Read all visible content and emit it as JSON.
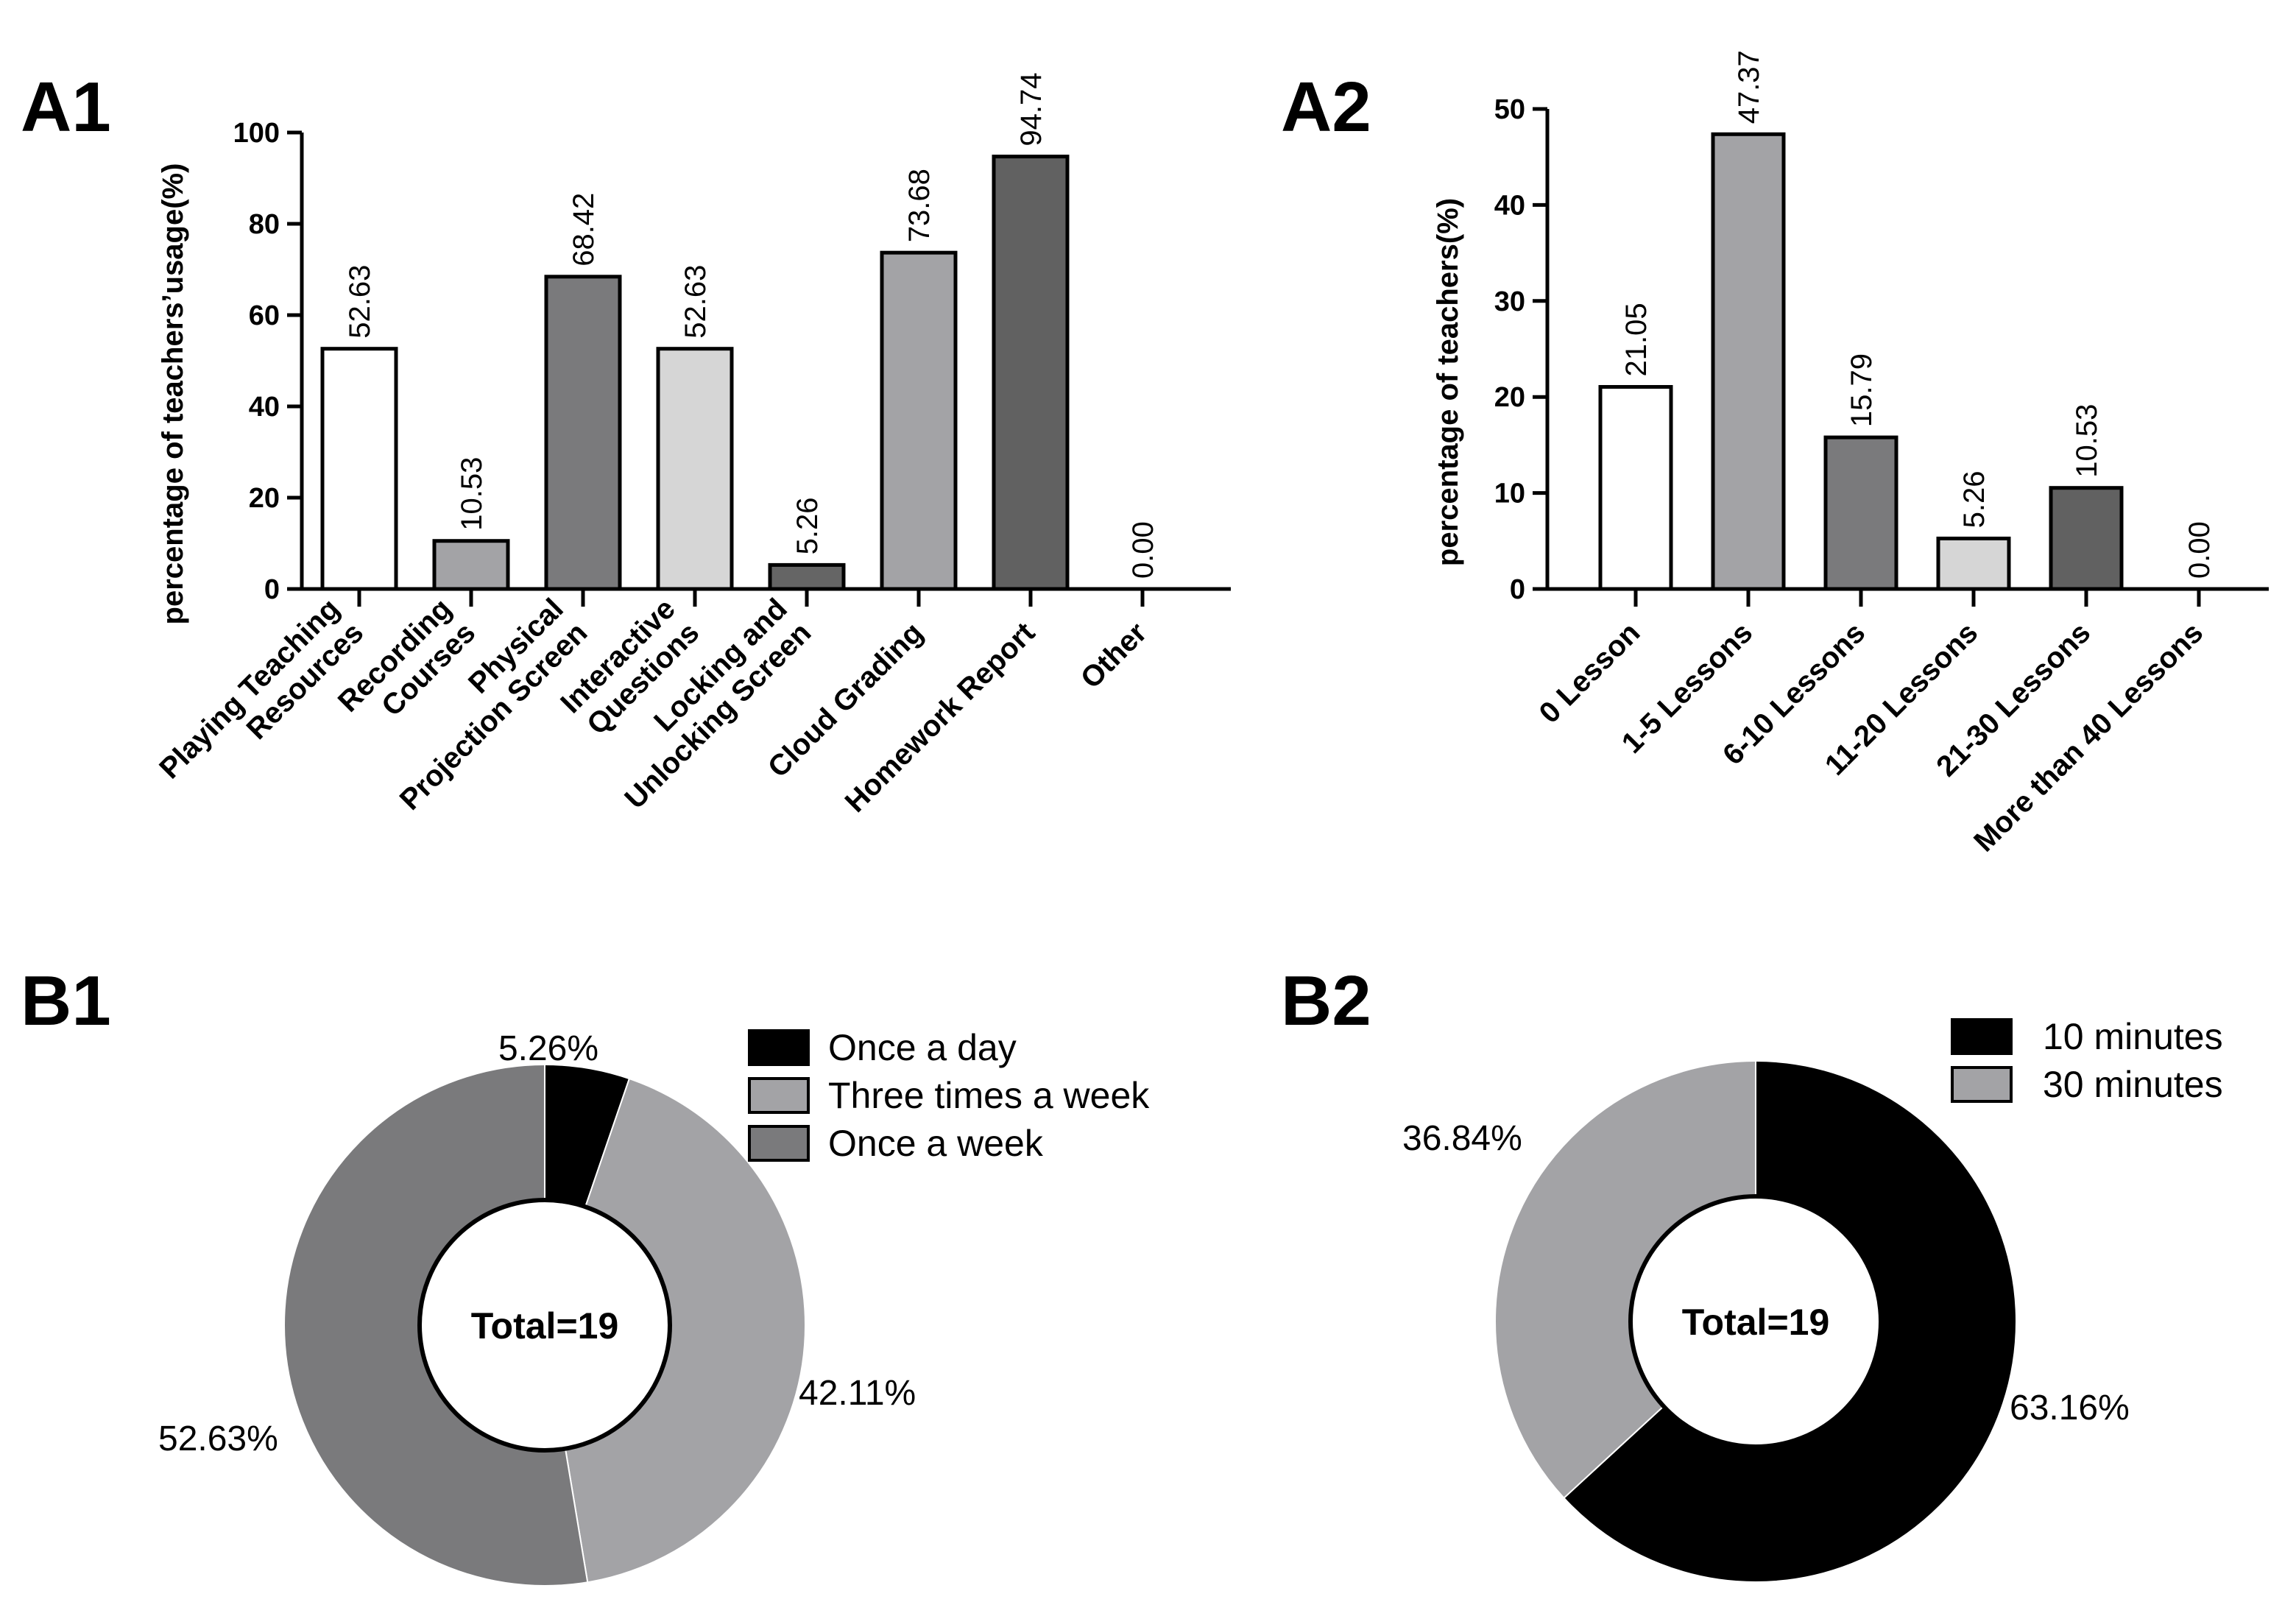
{
  "chart_data": [
    {
      "id": "A1",
      "type": "bar",
      "panel_label": "A1",
      "ylabel": "percentage of teachers’usage(%)",
      "ylim": [
        0,
        100
      ],
      "yticks": [
        0,
        20,
        40,
        60,
        80,
        100
      ],
      "categories": [
        [
          "Playing Teaching",
          "Resources"
        ],
        [
          "Recording",
          "Courses"
        ],
        [
          "Physical",
          "Projection Screen"
        ],
        [
          "Interactive",
          "Questions"
        ],
        [
          "Locking and",
          "Unlocking Screen"
        ],
        [
          "Cloud Grading"
        ],
        [
          "Homework Report"
        ],
        [
          "Other"
        ]
      ],
      "values": [
        52.63,
        10.53,
        68.42,
        52.63,
        5.26,
        73.68,
        94.74,
        0.0
      ],
      "value_labels": [
        "52.63",
        "10.53",
        "68.42",
        "52.63",
        "5.26",
        "73.68",
        "94.74",
        "0.00"
      ],
      "colors": [
        "#ffffff",
        "#a3a3a6",
        "#7a7a7c",
        "#d6d6d6",
        "#656565",
        "#a3a3a6",
        "#616161",
        "#ffffff"
      ]
    },
    {
      "id": "A2",
      "type": "bar",
      "panel_label": "A2",
      "ylabel": "percentage of teachers(%)",
      "ylim": [
        0,
        50
      ],
      "yticks": [
        0,
        10,
        20,
        30,
        40,
        50
      ],
      "categories": [
        [
          "0 Lesson"
        ],
        [
          "1-5 Lessons"
        ],
        [
          "6-10 Lessons"
        ],
        [
          "11-20 Lessons"
        ],
        [
          "21-30 Lessons"
        ],
        [
          "More than 40 Lessons"
        ]
      ],
      "values": [
        21.05,
        47.37,
        15.79,
        5.26,
        10.53,
        0.0
      ],
      "value_labels": [
        "21.05",
        "47.37",
        "15.79",
        "5.26",
        "10.53",
        "0.00"
      ],
      "colors": [
        "#ffffff",
        "#a3a3a6",
        "#7a7a7c",
        "#d6d6d6",
        "#616161",
        "#ffffff"
      ]
    },
    {
      "id": "B1",
      "type": "pie",
      "panel_label": "B1",
      "center_text": "Total=19",
      "labels": [
        "Once a day",
        "Three times a week",
        "Once a week"
      ],
      "values": [
        5.26,
        42.11,
        52.63
      ],
      "value_labels": [
        "5.26%",
        "42.11%",
        "52.63%"
      ],
      "colors": [
        "#000000",
        "#a3a3a6",
        "#7a7a7c"
      ]
    },
    {
      "id": "B2",
      "type": "pie",
      "panel_label": "B2",
      "center_text": "Total=19",
      "labels": [
        "10 minutes",
        "30 minutes"
      ],
      "values": [
        63.16,
        36.84
      ],
      "value_labels": [
        "63.16%",
        "36.84%"
      ],
      "colors": [
        "#000000",
        "#a3a3a6"
      ]
    }
  ]
}
